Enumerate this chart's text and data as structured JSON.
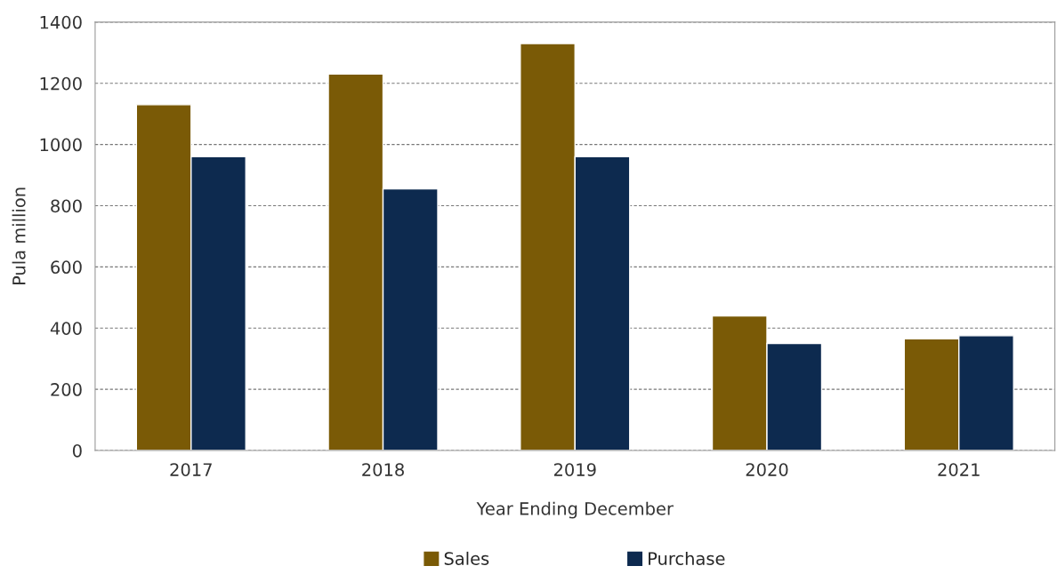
{
  "chart_data": {
    "type": "bar",
    "xlabel": "Year Ending December",
    "ylabel": "Pula million",
    "categories": [
      "2017",
      "2018",
      "2019",
      "2020",
      "2021"
    ],
    "series": [
      {
        "name": "Sales",
        "color": "#7a5a06",
        "values": [
          1130,
          1230,
          1330,
          440,
          365
        ]
      },
      {
        "name": "Purchase",
        "color": "#0d2a4f",
        "values": [
          960,
          855,
          960,
          350,
          375
        ]
      }
    ],
    "ylim": [
      0,
      1400
    ],
    "yticks": [
      0,
      200,
      400,
      600,
      800,
      1000,
      1200,
      1400
    ],
    "grid": "y",
    "legend": "bottom"
  }
}
